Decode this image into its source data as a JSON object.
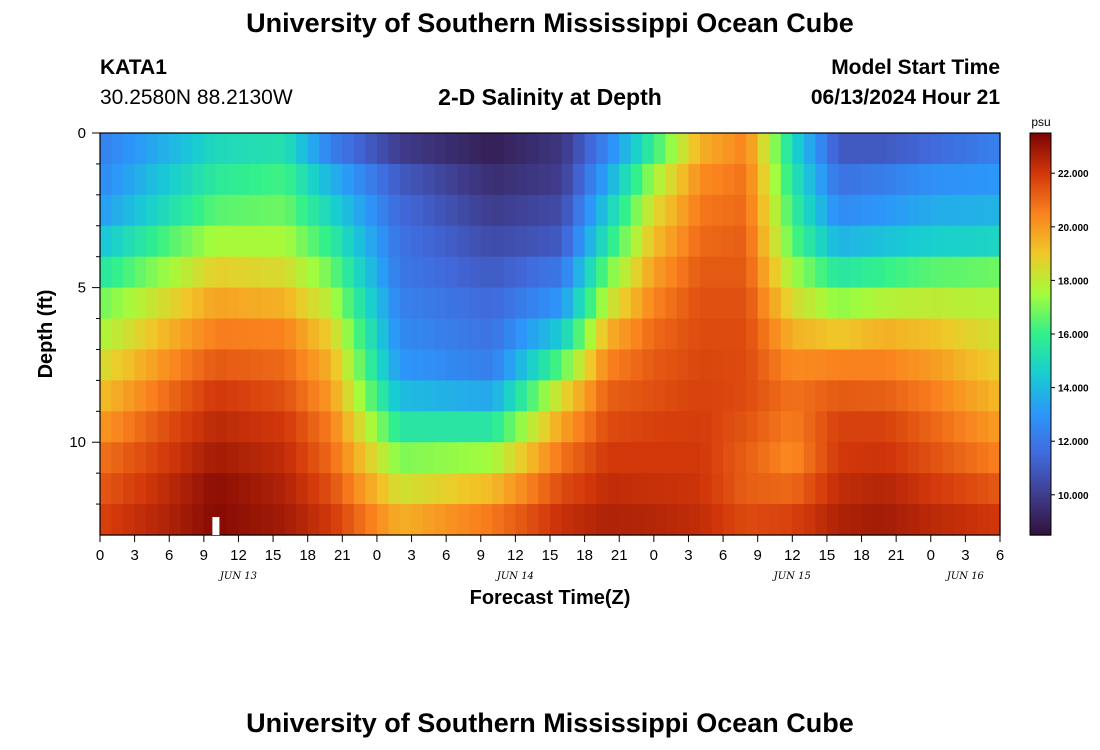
{
  "header": {
    "title": "University of Southern Mississippi Ocean Cube",
    "station": "KATA1",
    "location": "30.2580N  88.2130W",
    "chart_title": "2-D Salinity at Depth",
    "model_start_label": "Model Start Time",
    "model_start_value": "06/13/2024 Hour 21"
  },
  "footer": {
    "title": "University of Southern Mississippi Ocean Cube"
  },
  "chart_data": {
    "type": "heatmap",
    "title": "2-D Salinity at Depth",
    "xlabel": "Forecast Time(Z)",
    "ylabel": "Depth (ft)",
    "units": "psu",
    "hours_range": [
      0,
      78
    ],
    "y_ticks": [
      "0",
      "5",
      "10"
    ],
    "x_ticks": [
      "0",
      "3",
      "6",
      "9",
      "12",
      "15",
      "18",
      "21",
      "0",
      "3",
      "6",
      "9",
      "12",
      "15",
      "18",
      "21",
      "0",
      "3",
      "6",
      "9",
      "12",
      "15",
      "18",
      "21",
      "0",
      "3",
      "6"
    ],
    "date_labels": [
      {
        "label": "JUN 13",
        "hour": 12
      },
      {
        "label": "JUN 14",
        "hour": 36
      },
      {
        "label": "JUN 15",
        "hour": 60
      },
      {
        "label": "JUN 16",
        "hour": 75
      }
    ],
    "color_range": [
      8.5,
      23.5
    ],
    "colorbar_ticks": [
      "10.000",
      "12.000",
      "14.000",
      "16.000",
      "18.000",
      "20.000",
      "22.000"
    ],
    "colorbar_values": [
      10,
      12,
      14,
      16,
      18,
      20,
      22
    ],
    "current_time_marker_hour": 10,
    "depth_levels_ft": [
      0,
      1,
      2,
      3,
      4,
      5,
      6,
      7,
      8,
      9,
      10,
      11,
      12
    ],
    "time_keys_hours": [
      0,
      6,
      10,
      16,
      20,
      26,
      34,
      40,
      44,
      48,
      52,
      56,
      60,
      64,
      68,
      72,
      78
    ],
    "salinity_psu": [
      [
        12.3,
        13.8,
        15.0,
        15.3,
        12.3,
        10.0,
        9.0,
        9.8,
        12.5,
        16.0,
        19.5,
        20.5,
        15.0,
        11.0,
        11.0,
        11.5,
        12.3
      ],
      [
        12.6,
        14.5,
        15.7,
        16.2,
        13.8,
        11.0,
        9.5,
        10.0,
        13.5,
        17.5,
        20.3,
        20.8,
        15.5,
        11.8,
        12.2,
        12.8,
        13.0
      ],
      [
        13.1,
        15.2,
        16.5,
        16.8,
        14.8,
        11.5,
        10.0,
        10.5,
        14.5,
        18.5,
        20.7,
        21.0,
        16.0,
        12.6,
        13.0,
        13.6,
        13.8
      ],
      [
        14.2,
        16.4,
        17.6,
        17.6,
        15.8,
        11.8,
        10.5,
        11.0,
        15.5,
        19.2,
        21.0,
        21.2,
        16.5,
        13.8,
        14.2,
        14.6,
        14.8
      ],
      [
        15.5,
        17.5,
        18.8,
        18.5,
        16.8,
        12.0,
        11.0,
        12.0,
        16.8,
        19.9,
        21.3,
        21.3,
        17.5,
        15.5,
        16.0,
        16.5,
        16.8
      ],
      [
        16.8,
        18.6,
        19.8,
        19.5,
        17.8,
        12.3,
        11.5,
        13.0,
        18.0,
        20.5,
        21.5,
        21.5,
        18.5,
        17.2,
        17.8,
        18.0,
        17.8
      ],
      [
        17.6,
        19.5,
        20.6,
        20.5,
        18.8,
        12.6,
        11.8,
        14.5,
        19.5,
        21.0,
        21.6,
        21.6,
        19.5,
        19.0,
        19.5,
        19.2,
        18.3
      ],
      [
        18.4,
        20.3,
        21.3,
        21.0,
        19.5,
        13.0,
        12.2,
        16.5,
        20.5,
        21.3,
        21.7,
        21.6,
        20.3,
        20.5,
        20.5,
        20.0,
        18.8
      ],
      [
        19.2,
        21.0,
        22.0,
        21.5,
        20.0,
        14.0,
        13.5,
        18.5,
        21.2,
        21.5,
        21.8,
        21.6,
        20.8,
        21.3,
        21.2,
        20.6,
        19.3
      ],
      [
        20.0,
        21.6,
        22.4,
        22.0,
        20.6,
        15.5,
        15.5,
        19.8,
        21.6,
        21.8,
        21.9,
        21.4,
        20.6,
        21.8,
        21.8,
        21.1,
        19.9
      ],
      [
        20.8,
        22.0,
        22.8,
        22.3,
        21.0,
        17.0,
        17.5,
        20.8,
        22.0,
        22.0,
        22.0,
        21.2,
        20.3,
        22.0,
        22.1,
        21.5,
        20.5
      ],
      [
        21.3,
        22.4,
        23.2,
        22.6,
        21.5,
        18.3,
        19.3,
        21.6,
        22.3,
        22.2,
        22.1,
        21.2,
        21.0,
        22.3,
        22.5,
        22.0,
        21.3
      ],
      [
        21.8,
        22.6,
        23.3,
        22.8,
        22.0,
        19.5,
        20.7,
        22.2,
        22.6,
        22.5,
        22.3,
        21.6,
        21.8,
        22.6,
        22.8,
        22.4,
        22.0
      ]
    ]
  }
}
